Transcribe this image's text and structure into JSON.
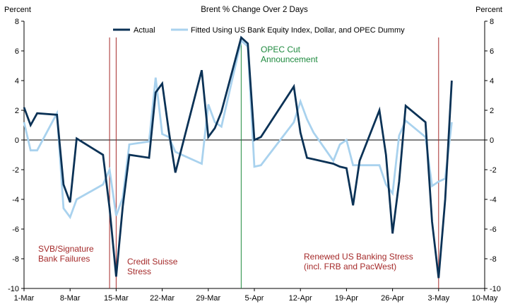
{
  "colors": {
    "actual": "#0b3256",
    "fitted": "#a9d2ee",
    "event_red": "#a52a2a",
    "event_green": "#1e8a3e",
    "background": "#ffffff"
  },
  "chart_data": {
    "type": "line",
    "title": "Brent % Change Over 2 Days",
    "ylabel_left": "Percent",
    "ylabel_right": "Percent",
    "ylim": [
      -10,
      8
    ],
    "yticks": [
      -10,
      -8,
      -6,
      -4,
      -2,
      0,
      2,
      4,
      6,
      8
    ],
    "xlim": [
      "2023-03-01",
      "2023-05-10"
    ],
    "xticks": [
      "1-Mar",
      "8-Mar",
      "15-Mar",
      "22-Mar",
      "29-Mar",
      "5-Apr",
      "12-Apr",
      "19-Apr",
      "26-Apr",
      "3-May",
      "10-May"
    ],
    "grid": false,
    "legend_position": "top",
    "series": [
      {
        "name": "Actual",
        "x": [
          "2023-03-01",
          "2023-03-02",
          "2023-03-03",
          "2023-03-06",
          "2023-03-07",
          "2023-03-08",
          "2023-03-09",
          "2023-03-13",
          "2023-03-14",
          "2023-03-15",
          "2023-03-16",
          "2023-03-17",
          "2023-03-20",
          "2023-03-21",
          "2023-03-22",
          "2023-03-23",
          "2023-03-24",
          "2023-03-28",
          "2023-03-29",
          "2023-03-30",
          "2023-03-31",
          "2023-04-03",
          "2023-04-04",
          "2023-04-05",
          "2023-04-06",
          "2023-04-11",
          "2023-04-12",
          "2023-04-13",
          "2023-04-14",
          "2023-04-17",
          "2023-04-18",
          "2023-04-19",
          "2023-04-20",
          "2023-04-21",
          "2023-04-24",
          "2023-04-25",
          "2023-04-26",
          "2023-04-27",
          "2023-04-28",
          "2023-05-01",
          "2023-05-02",
          "2023-05-03",
          "2023-05-04",
          "2023-05-05"
        ],
        "y": [
          2.2,
          1.0,
          1.8,
          1.7,
          -3.0,
          -4.2,
          0.1,
          -1.0,
          -4.6,
          -9.2,
          -4.5,
          -1.0,
          -1.2,
          3.2,
          3.8,
          0.6,
          -2.2,
          4.7,
          0.2,
          0.8,
          1.9,
          6.9,
          6.5,
          0.0,
          0.2,
          3.6,
          0.5,
          -1.2,
          -1.3,
          -1.6,
          -1.8,
          -1.9,
          -4.4,
          -1.4,
          2.0,
          -1.0,
          -6.3,
          -2.8,
          2.3,
          1.2,
          -5.5,
          -9.3,
          -4.0,
          4.0
        ]
      },
      {
        "name": "Fitted Using US Bank Equity Index, Dollar, and OPEC Dummy",
        "x": [
          "2023-03-01",
          "2023-03-02",
          "2023-03-03",
          "2023-03-06",
          "2023-03-07",
          "2023-03-08",
          "2023-03-09",
          "2023-03-13",
          "2023-03-14",
          "2023-03-15",
          "2023-03-16",
          "2023-03-17",
          "2023-03-20",
          "2023-03-21",
          "2023-03-22",
          "2023-03-23",
          "2023-03-24",
          "2023-03-28",
          "2023-03-29",
          "2023-03-30",
          "2023-03-31",
          "2023-04-03",
          "2023-04-04",
          "2023-04-05",
          "2023-04-06",
          "2023-04-11",
          "2023-04-12",
          "2023-04-13",
          "2023-04-14",
          "2023-04-17",
          "2023-04-18",
          "2023-04-19",
          "2023-04-20",
          "2023-04-21",
          "2023-04-24",
          "2023-04-25",
          "2023-04-26",
          "2023-04-27",
          "2023-04-28",
          "2023-05-01",
          "2023-05-02",
          "2023-05-03",
          "2023-05-04",
          "2023-05-05"
        ],
        "y": [
          1.2,
          -0.7,
          -0.7,
          1.8,
          -4.6,
          -5.2,
          -4.0,
          -3.0,
          -2.0,
          -5.1,
          -3.9,
          -0.3,
          -0.1,
          4.2,
          0.4,
          0.2,
          -0.8,
          -1.6,
          2.4,
          1.2,
          0.9,
          6.7,
          6.3,
          -1.8,
          -1.7,
          1.2,
          2.6,
          1.4,
          0.5,
          -1.4,
          -0.3,
          0.0,
          -1.7,
          -1.7,
          -1.7,
          -3.0,
          -3.6,
          0.3,
          1.3,
          0.2,
          -3.1,
          -2.8,
          -2.6,
          1.2
        ]
      }
    ],
    "event_lines": [
      {
        "x": "2023-03-14",
        "color_key": "event_red"
      },
      {
        "x": "2023-03-15",
        "color_key": "event_red"
      },
      {
        "x": "2023-04-03",
        "color_key": "event_green"
      },
      {
        "x": "2023-05-03",
        "color_key": "event_red"
      }
    ],
    "annotations": [
      {
        "lines": [
          "SVB/Signature",
          "Bank Failures"
        ],
        "color_key": "event_red"
      },
      {
        "lines": [
          "Credit Suisse",
          "Stress"
        ],
        "color_key": "event_red"
      },
      {
        "lines": [
          "OPEC Cut",
          "Announcement"
        ],
        "color_key": "event_green"
      },
      {
        "lines": [
          "Renewed US Banking Stress",
          "(incl. FRB and PacWest)"
        ],
        "color_key": "event_red"
      }
    ]
  }
}
